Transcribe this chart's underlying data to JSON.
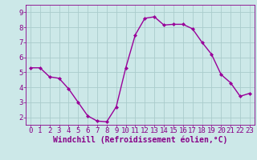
{
  "x": [
    0,
    1,
    2,
    3,
    4,
    5,
    6,
    7,
    8,
    9,
    10,
    11,
    12,
    13,
    14,
    15,
    16,
    17,
    18,
    19,
    20,
    21,
    22,
    23
  ],
  "y": [
    5.3,
    5.3,
    4.7,
    4.6,
    3.9,
    3.0,
    2.1,
    1.75,
    1.7,
    2.7,
    5.3,
    7.5,
    8.6,
    8.7,
    8.15,
    8.2,
    8.2,
    7.9,
    7.0,
    6.2,
    4.85,
    4.3,
    3.4,
    3.6
  ],
  "line_color": "#990099",
  "marker": "D",
  "marker_size": 2.0,
  "xlabel": "Windchill (Refroidissement éolien,°C)",
  "xlabel_fontsize": 7,
  "ylim": [
    1.5,
    9.5
  ],
  "xlim": [
    -0.5,
    23.5
  ],
  "yticks": [
    2,
    3,
    4,
    5,
    6,
    7,
    8,
    9
  ],
  "xticks": [
    0,
    1,
    2,
    3,
    4,
    5,
    6,
    7,
    8,
    9,
    10,
    11,
    12,
    13,
    14,
    15,
    16,
    17,
    18,
    19,
    20,
    21,
    22,
    23
  ],
  "grid_color": "#aacccc",
  "bg_color": "#cce8e8",
  "tick_color": "#880088",
  "tick_fontsize": 6.5,
  "line_width": 1.0
}
